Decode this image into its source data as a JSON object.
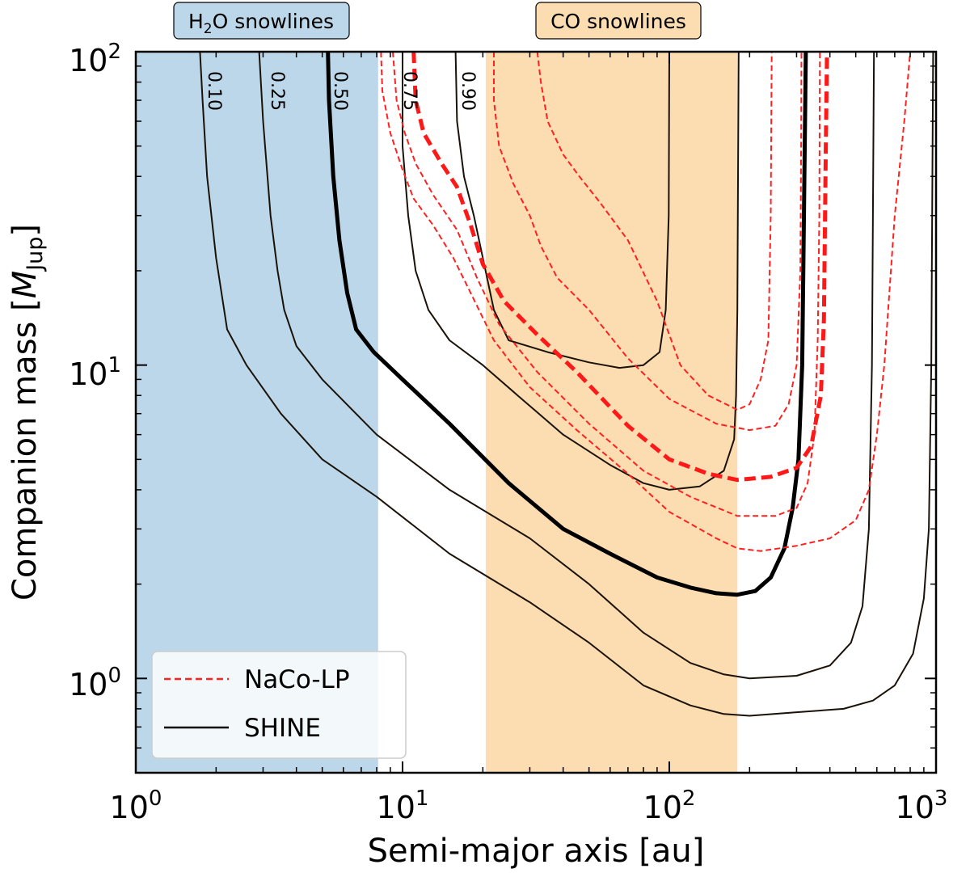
{
  "chart_data": {
    "type": "line",
    "xlabel": "Semi-major axis [au]",
    "ylabel_main": "Companion mass [",
    "ylabel_sym": "M",
    "ylabel_sub": "Jup",
    "ylabel_end": "]",
    "xscale": "log",
    "yscale": "log",
    "xlim": [
      1,
      1000
    ],
    "ylim": [
      0.5,
      100
    ],
    "x_ticks": [
      {
        "value": 1,
        "base": "10",
        "exp": "0"
      },
      {
        "value": 10,
        "base": "10",
        "exp": "1"
      },
      {
        "value": 100,
        "base": "10",
        "exp": "2"
      },
      {
        "value": 1000,
        "base": "10",
        "exp": "3"
      }
    ],
    "y_ticks": [
      {
        "value": 1,
        "base": "10",
        "exp": "0"
      },
      {
        "value": 10,
        "base": "10",
        "exp": "1"
      },
      {
        "value": 100,
        "base": "10",
        "exp": "2"
      }
    ],
    "regions": [
      {
        "name": "h2o",
        "label_pre": "H",
        "label_sub": "2",
        "label_post": "O snowlines",
        "x0": 1,
        "x1": 8.1,
        "color": "#bcd7e9"
      },
      {
        "name": "co",
        "label_pre": "CO snowlines",
        "label_sub": "",
        "label_post": "",
        "x0": 20.5,
        "x1": 180,
        "color": "#fcdcb1"
      }
    ],
    "legend": {
      "position": "bottom-left",
      "entries": [
        {
          "label": "NaCo-LP",
          "color": "#ff2020",
          "style": "dashed"
        },
        {
          "label": "SHINE",
          "color": "#000000",
          "style": "solid"
        }
      ]
    },
    "contour_labels": [
      "0.10",
      "0.25",
      "0.50",
      "0.75",
      "0.90"
    ],
    "series": [
      {
        "survey": "SHINE",
        "level": "0.10",
        "color": "#1a1208",
        "width": 2,
        "dash": "",
        "points": [
          [
            1.74,
            100
          ],
          [
            1.78,
            70
          ],
          [
            1.85,
            40
          ],
          [
            2.0,
            22
          ],
          [
            2.2,
            13
          ],
          [
            2.6,
            10
          ],
          [
            3.5,
            7
          ],
          [
            5,
            5
          ],
          [
            8,
            3.8
          ],
          [
            15,
            2.5
          ],
          [
            30,
            1.75
          ],
          [
            50,
            1.3
          ],
          [
            80,
            0.95
          ],
          [
            120,
            0.82
          ],
          [
            160,
            0.77
          ],
          [
            200,
            0.76
          ],
          [
            300,
            0.78
          ],
          [
            450,
            0.8
          ],
          [
            580,
            0.85
          ],
          [
            700,
            0.95
          ],
          [
            820,
            1.2
          ],
          [
            900,
            1.8
          ],
          [
            940,
            3
          ],
          [
            960,
            10
          ],
          [
            975,
            100
          ]
        ]
      },
      {
        "survey": "SHINE",
        "level": "0.25",
        "color": "#1a1208",
        "width": 2,
        "dash": "",
        "points": [
          [
            2.9,
            100
          ],
          [
            3.0,
            60
          ],
          [
            3.2,
            30
          ],
          [
            3.4,
            20
          ],
          [
            3.6,
            15
          ],
          [
            4.0,
            11.5
          ],
          [
            5,
            9
          ],
          [
            8,
            6
          ],
          [
            15,
            4
          ],
          [
            30,
            2.8
          ],
          [
            50,
            2
          ],
          [
            80,
            1.4
          ],
          [
            120,
            1.12
          ],
          [
            160,
            1.03
          ],
          [
            200,
            1.0
          ],
          [
            300,
            1.02
          ],
          [
            400,
            1.1
          ],
          [
            480,
            1.3
          ],
          [
            530,
            1.7
          ],
          [
            560,
            3
          ],
          [
            575,
            10
          ],
          [
            585,
            100
          ]
        ]
      },
      {
        "survey": "SHINE",
        "level": "0.50",
        "color": "#000000",
        "width": 5,
        "dash": "",
        "points": [
          [
            5.25,
            100
          ],
          [
            5.3,
            70
          ],
          [
            5.5,
            40
          ],
          [
            5.8,
            25
          ],
          [
            6.2,
            17
          ],
          [
            6.7,
            13
          ],
          [
            7.8,
            11
          ],
          [
            10,
            9
          ],
          [
            15,
            6.5
          ],
          [
            25,
            4.2
          ],
          [
            40,
            3.0
          ],
          [
            60,
            2.5
          ],
          [
            90,
            2.1
          ],
          [
            120,
            1.95
          ],
          [
            150,
            1.87
          ],
          [
            180,
            1.85
          ],
          [
            210,
            1.9
          ],
          [
            240,
            2.1
          ],
          [
            270,
            2.6
          ],
          [
            290,
            3.5
          ],
          [
            305,
            5
          ],
          [
            315,
            10
          ],
          [
            325,
            100
          ]
        ]
      },
      {
        "survey": "SHINE",
        "level": "0.75",
        "color": "#1a1208",
        "width": 2,
        "dash": "",
        "points": [
          [
            10,
            100
          ],
          [
            10,
            50
          ],
          [
            10.5,
            30
          ],
          [
            11.2,
            20
          ],
          [
            12.5,
            15
          ],
          [
            15,
            12
          ],
          [
            20,
            10
          ],
          [
            27,
            8
          ],
          [
            40,
            6
          ],
          [
            60,
            4.8
          ],
          [
            80,
            4.2
          ],
          [
            100,
            4.0
          ],
          [
            130,
            4.1
          ],
          [
            160,
            4.6
          ],
          [
            175,
            5.8
          ],
          [
            178,
            8
          ],
          [
            180,
            15
          ],
          [
            182,
            100
          ]
        ]
      },
      {
        "survey": "SHINE",
        "level": "0.90",
        "color": "#1a1208",
        "width": 2,
        "dash": "",
        "points": [
          [
            15.8,
            100
          ],
          [
            16.0,
            60
          ],
          [
            17,
            40
          ],
          [
            18.5,
            30
          ],
          [
            20,
            22
          ],
          [
            22,
            15
          ],
          [
            25,
            12
          ],
          [
            35,
            11
          ],
          [
            50,
            10.2
          ],
          [
            65,
            9.8
          ],
          [
            80,
            10
          ],
          [
            92,
            11
          ],
          [
            97,
            15
          ],
          [
            99.5,
            30
          ],
          [
            100,
            100
          ]
        ]
      },
      {
        "survey": "NaCo-LP",
        "level": "0.10",
        "color": "#ff2020",
        "width": 2,
        "dash": "7 4",
        "points": [
          [
            8.3,
            100
          ],
          [
            8.4,
            75
          ],
          [
            9,
            55
          ],
          [
            10,
            42
          ],
          [
            11,
            34
          ],
          [
            13,
            28
          ],
          [
            15.5,
            22
          ],
          [
            18,
            17
          ],
          [
            22,
            12
          ],
          [
            30,
            8.5
          ],
          [
            45,
            6.2
          ],
          [
            70,
            4.5
          ],
          [
            100,
            3.4
          ],
          [
            150,
            2.8
          ],
          [
            180,
            2.6
          ],
          [
            220,
            2.55
          ],
          [
            300,
            2.65
          ],
          [
            400,
            2.8
          ],
          [
            500,
            3.2
          ],
          [
            560,
            4
          ],
          [
            600,
            6
          ],
          [
            640,
            10
          ],
          [
            700,
            30
          ],
          [
            760,
            60
          ],
          [
            800,
            100
          ]
        ]
      },
      {
        "survey": "NaCo-LP",
        "level": "0.25",
        "color": "#ff2020",
        "width": 2,
        "dash": "7 4",
        "points": [
          [
            9.2,
            100
          ],
          [
            9.5,
            70
          ],
          [
            10.2,
            55
          ],
          [
            11.2,
            44
          ],
          [
            13,
            35
          ],
          [
            16,
            27
          ],
          [
            19,
            19
          ],
          [
            23,
            13.5
          ],
          [
            32,
            9.5
          ],
          [
            50,
            6.5
          ],
          [
            80,
            4.6
          ],
          [
            120,
            3.8
          ],
          [
            180,
            3.3
          ],
          [
            250,
            3.3
          ],
          [
            300,
            3.5
          ],
          [
            330,
            4.2
          ],
          [
            350,
            6
          ],
          [
            360,
            12
          ],
          [
            365,
            30
          ],
          [
            367,
            100
          ]
        ]
      },
      {
        "survey": "NaCo-LP",
        "level": "0.50",
        "color": "#ff1818",
        "width": 5,
        "dash": "14 7",
        "points": [
          [
            11,
            100
          ],
          [
            11.2,
            70
          ],
          [
            12,
            55
          ],
          [
            14,
            44
          ],
          [
            16,
            37
          ],
          [
            18,
            28
          ],
          [
            20,
            21
          ],
          [
            24,
            16
          ],
          [
            32,
            12.5
          ],
          [
            45,
            9.5
          ],
          [
            70,
            6.4
          ],
          [
            100,
            5.0
          ],
          [
            140,
            4.5
          ],
          [
            180,
            4.3
          ],
          [
            240,
            4.4
          ],
          [
            300,
            4.7
          ],
          [
            340,
            5.5
          ],
          [
            370,
            8
          ],
          [
            380,
            14
          ],
          [
            385,
            40
          ],
          [
            390,
            100
          ]
        ]
      },
      {
        "survey": "NaCo-LP",
        "level": "0.75",
        "color": "#ff2020",
        "width": 2,
        "dash": "7 4",
        "points": [
          [
            22,
            100
          ],
          [
            22,
            70
          ],
          [
            23,
            50
          ],
          [
            26,
            38
          ],
          [
            30,
            30
          ],
          [
            33,
            24
          ],
          [
            38,
            19
          ],
          [
            50,
            15
          ],
          [
            70,
            10.5
          ],
          [
            100,
            7.8
          ],
          [
            150,
            6.5
          ],
          [
            200,
            6.2
          ],
          [
            250,
            6.4
          ],
          [
            280,
            7.5
          ],
          [
            300,
            10
          ],
          [
            310,
            20
          ],
          [
            312,
            50
          ],
          [
            313,
            100
          ]
        ]
      },
      {
        "survey": "NaCo-LP",
        "level": "0.90",
        "color": "#ff2020",
        "width": 2,
        "dash": "7 4",
        "points": [
          [
            32,
            100
          ],
          [
            33,
            80
          ],
          [
            35,
            60
          ],
          [
            40,
            47
          ],
          [
            46,
            40
          ],
          [
            55,
            33
          ],
          [
            70,
            25
          ],
          [
            90,
            16
          ],
          [
            110,
            10
          ],
          [
            140,
            8
          ],
          [
            180,
            7.2
          ],
          [
            200,
            7.5
          ],
          [
            220,
            9
          ],
          [
            235,
            12
          ],
          [
            240,
            30
          ],
          [
            242,
            100
          ]
        ]
      }
    ]
  }
}
